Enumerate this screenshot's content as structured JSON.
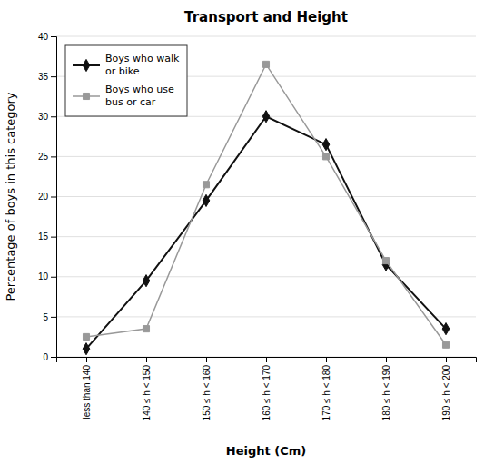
{
  "chart_data": {
    "type": "line",
    "title": "Transport and Height",
    "x_label": "Height (Cm)",
    "y_label": "Percentage of boys in this category",
    "categories": [
      "less than 140",
      "140 ≤ h < 150",
      "150 ≤ h < 160",
      "160 ≤ h < 170",
      "170 ≤ h < 180",
      "180 ≤ h < 190",
      "190 ≤ h < 200"
    ],
    "series": [
      {
        "name": "Boys who walk\nor bike",
        "color": "#111111",
        "marker": "diamond",
        "line_style": "solid",
        "values": [
          1,
          9.5,
          19.5,
          30,
          26.5,
          11.5,
          3.5
        ]
      },
      {
        "name": "Boys who use\nbus or car",
        "color": "#999999",
        "marker": "square",
        "line_style": "solid",
        "values": [
          2.5,
          3.5,
          21.5,
          36.5,
          25,
          12,
          1.5
        ]
      }
    ],
    "ylim": [
      0,
      40
    ],
    "yticks": [
      0,
      5,
      10,
      15,
      20,
      25,
      30,
      35,
      40
    ],
    "grid": true,
    "legend": "upper left"
  }
}
